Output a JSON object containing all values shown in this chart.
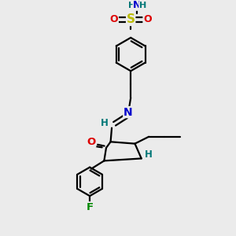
{
  "bg_color": "#ebebeb",
  "atom_colors": {
    "C": "#000000",
    "N": "#0000cc",
    "O": "#dd0000",
    "S": "#bbbb00",
    "F": "#008800",
    "H": "#007777"
  },
  "bond_color": "#000000",
  "bond_width": 1.6,
  "font_size_atom": 8.5
}
